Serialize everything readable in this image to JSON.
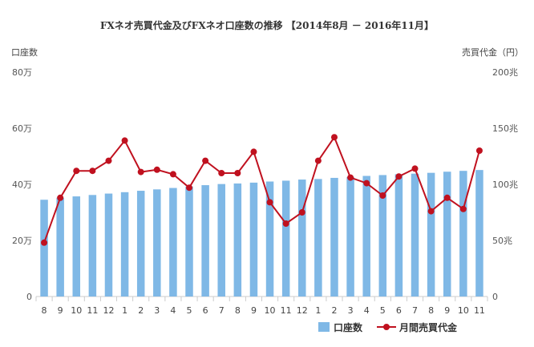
{
  "chart_data": {
    "type": "bar+line",
    "title": "FXネオ売買代金及びFXネオ口座数の推移 【2014年8月 － 2016年11月】",
    "categories": [
      "8",
      "9",
      "10",
      "11",
      "12",
      "1",
      "2",
      "3",
      "4",
      "5",
      "6",
      "7",
      "8",
      "9",
      "10",
      "11",
      "12",
      "1",
      "2",
      "3",
      "4",
      "5",
      "6",
      "7",
      "8",
      "9",
      "10",
      "11"
    ],
    "left_axis": {
      "title": "口座数",
      "range": [
        0,
        800000
      ],
      "tick_labels": [
        "0",
        "20万",
        "40万",
        "60万",
        "80万"
      ],
      "tick_values": [
        0,
        200000,
        400000,
        600000,
        800000
      ]
    },
    "right_axis": {
      "title": "売買代金（円）",
      "range": [
        0,
        200
      ],
      "unit": "兆",
      "tick_labels": [
        "0",
        "50兆",
        "100兆",
        "150兆",
        "200兆"
      ],
      "tick_values": [
        0,
        50,
        100,
        150,
        200
      ]
    },
    "series": [
      {
        "name": "口座数",
        "type": "bar",
        "axis": "left",
        "color": "#7fb8e6",
        "values": [
          345000,
          352000,
          357000,
          362000,
          367000,
          372000,
          377000,
          382000,
          387000,
          392000,
          397000,
          401000,
          403000,
          406000,
          410000,
          413000,
          417000,
          419000,
          423000,
          426000,
          430000,
          433000,
          436000,
          438000,
          441000,
          445000,
          448000,
          451000
        ]
      },
      {
        "name": "月間売買代金",
        "type": "line",
        "axis": "right",
        "color": "#c0111f",
        "values": [
          48,
          88,
          112,
          112,
          121,
          139,
          111,
          113,
          109,
          97,
          121,
          110,
          110,
          129,
          84,
          65,
          75,
          121,
          142,
          106,
          101,
          90,
          107,
          114,
          76,
          88,
          78,
          130
        ]
      }
    ],
    "legend": {
      "placement": "bottom-right",
      "entries": [
        "口座数",
        "月間売買代金"
      ]
    },
    "grid": false
  }
}
